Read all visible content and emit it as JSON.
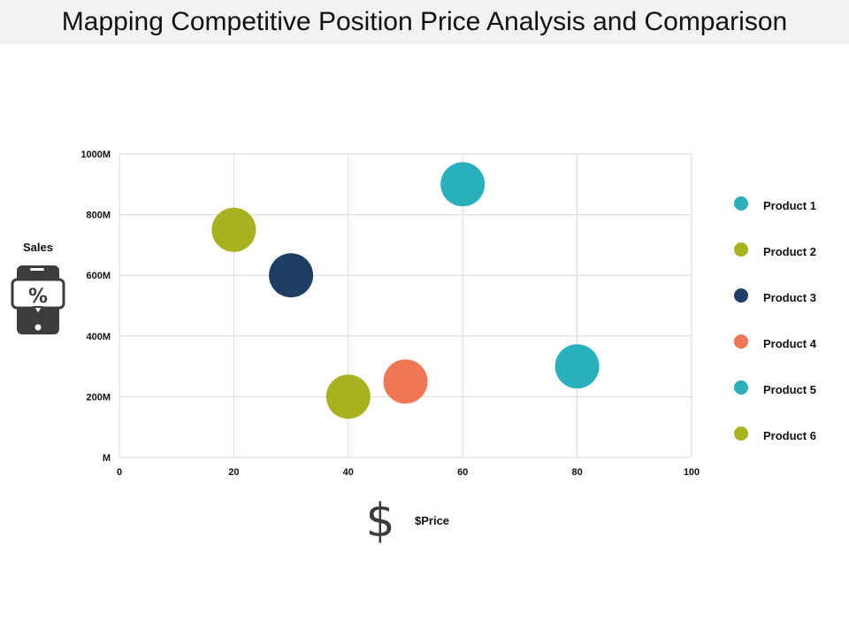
{
  "title": "Mapping Competitive Position Price Analysis and Comparison",
  "chart_data": {
    "type": "scatter",
    "xlabel": "$Price",
    "ylabel": "Sales",
    "xlim": [
      0,
      100
    ],
    "ylim": [
      0,
      1000
    ],
    "x_ticks": [
      0,
      20,
      40,
      60,
      80,
      100
    ],
    "x_tick_labels": [
      "0",
      "20",
      "40",
      "60",
      "80",
      "100"
    ],
    "y_ticks": [
      0,
      200,
      400,
      600,
      800,
      1000
    ],
    "y_tick_labels": [
      "M",
      "200M",
      "400M",
      "600M",
      "800M",
      "1000M"
    ],
    "grid": true,
    "legend": "right",
    "series": [
      {
        "name": "Product 1",
        "color": "#2ab0bc",
        "points": [
          {
            "x": 60,
            "y": 900
          }
        ]
      },
      {
        "name": "Product 2",
        "color": "#a8b21f",
        "points": [
          {
            "x": 20,
            "y": 750
          }
        ]
      },
      {
        "name": "Product 3",
        "color": "#1f3e63",
        "points": [
          {
            "x": 30,
            "y": 600
          }
        ]
      },
      {
        "name": "Product 4",
        "color": "#f07655",
        "points": [
          {
            "x": 50,
            "y": 250
          }
        ]
      },
      {
        "name": "Product 5",
        "color": "#2ab0bc",
        "points": [
          {
            "x": 80,
            "y": 300
          }
        ]
      },
      {
        "name": "Product 6",
        "color": "#a8b21f",
        "points": [
          {
            "x": 40,
            "y": 200
          }
        ]
      }
    ]
  },
  "icons": {
    "y_axis_icon": "mobile-discount-icon",
    "x_axis_icon": "dollar-icon"
  }
}
